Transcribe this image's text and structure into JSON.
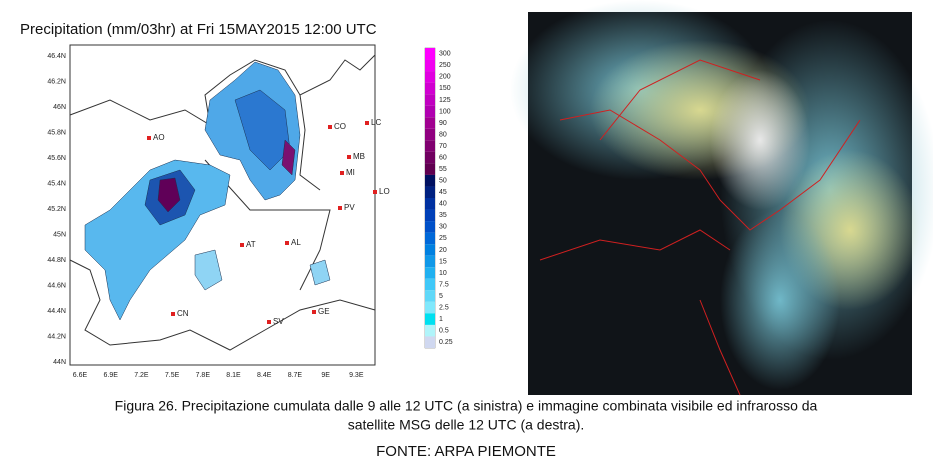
{
  "map": {
    "title": "Precipitation (mm/03hr) at Fri 15MAY2015 12:00 UTC",
    "lat_labels": [
      "46.4N",
      "46.2N",
      "46N",
      "45.8N",
      "45.6N",
      "45.4N",
      "45.2N",
      "45N",
      "44.8N",
      "44.6N",
      "44.4N",
      "44.2N",
      "44N"
    ],
    "lon_labels": [
      "6.6E",
      "6.9E",
      "7.2E",
      "7.5E",
      "7.8E",
      "8.1E",
      "8.4E",
      "8.7E",
      "9E",
      "9.3E"
    ],
    "cities": [
      "AO",
      "CO",
      "LC",
      "MB",
      "MI",
      "LO",
      "PV",
      "AT",
      "AL",
      "CN",
      "GE",
      "SV"
    ],
    "colorbar": {
      "labels": [
        300,
        250,
        200,
        150,
        125,
        100,
        90,
        80,
        70,
        60,
        55,
        50,
        45,
        40,
        35,
        30,
        25,
        20,
        15,
        10,
        7.5,
        5,
        2.5,
        1,
        0.5,
        0.25
      ],
      "colors": [
        "#ff00ff",
        "#f000f0",
        "#e000e0",
        "#d000d0",
        "#c000c0",
        "#b000b0",
        "#a00090",
        "#900080",
        "#800070",
        "#700060",
        "#600050",
        "#001060",
        "#002080",
        "#0030a0",
        "#0040b8",
        "#0050c8",
        "#0068d8",
        "#0080e0",
        "#1098e8",
        "#20b0f0",
        "#40c8f8",
        "#60d8f8",
        "#80e8fc",
        "#00e0f0",
        "#b0f4fa",
        "#d0d8f0"
      ]
    }
  },
  "caption": {
    "lines": [
      "Figura 26. Precipitazione cumulata dalle 9 alle 12 UTC (a sinistra) e immagine combinata visibile ed infrarosso da",
      "satellite MSG delle 12 UTC (a destra)."
    ],
    "source": "FONTE: ARPA PIEMONTE"
  }
}
